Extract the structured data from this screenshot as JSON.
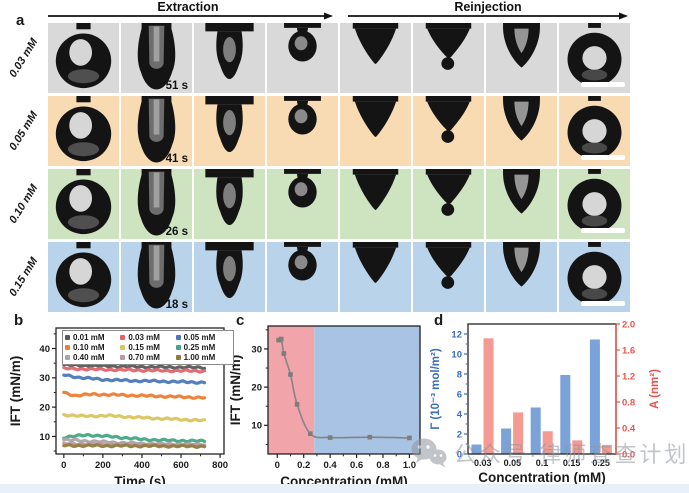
{
  "panel_a": {
    "label": "a",
    "extraction_label": "Extraction",
    "reinjection_label": "Reinjection",
    "rows": [
      {
        "concentration": "0.03 mM",
        "time_label": "51 s",
        "bg_color": "#d9d9d9"
      },
      {
        "concentration": "0.05 mM",
        "time_label": "41 s",
        "bg_color": "#f8dbb2"
      },
      {
        "concentration": "0.10 mM",
        "time_label": "26 s",
        "bg_color": "#cee4c0"
      },
      {
        "concentration": "0.15 mM",
        "time_label": "18 s",
        "bg_color": "#b9d3eb"
      }
    ],
    "droplet_sequence": [
      "ring-drop",
      "u-tube-drop",
      "mushroom-drop",
      "small-blob-drop",
      "cone-drop",
      "cone-drip-drop",
      "hollow-cone-drop",
      "ring-end-drop"
    ],
    "has_scale_bar": true
  },
  "chart_data": [
    {
      "panel_label": "b",
      "type": "line",
      "xlabel": "Time (s)",
      "ylabel": "IFT (mN/m)",
      "xlim": [
        -40,
        820
      ],
      "ylim": [
        4,
        47
      ],
      "xticks": [
        0,
        200,
        400,
        600,
        800
      ],
      "yticks": [
        10,
        20,
        30,
        40
      ],
      "grid": false,
      "legend_position": "top-inside",
      "series": [
        {
          "name": "0.01 mM",
          "color": "#595959",
          "points": [
            [
              0,
              34.4
            ],
            [
              150,
              34.1
            ],
            [
              300,
              33.9
            ],
            [
              450,
              33.7
            ],
            [
              600,
              33.6
            ],
            [
              720,
              33.5
            ]
          ]
        },
        {
          "name": "0.03 mM",
          "color": "#e2636b",
          "points": [
            [
              0,
              33.2
            ],
            [
              150,
              32.9
            ],
            [
              300,
              32.7
            ],
            [
              450,
              32.5
            ],
            [
              600,
              32.4
            ],
            [
              720,
              32.3
            ]
          ]
        },
        {
          "name": "0.05 mM",
          "color": "#4a78ba",
          "points": [
            [
              0,
              31.0
            ],
            [
              80,
              30.1
            ],
            [
              200,
              29.4
            ],
            [
              350,
              29.0
            ],
            [
              500,
              28.8
            ],
            [
              720,
              28.4
            ]
          ]
        },
        {
          "name": "0.10 mM",
          "color": "#ec7d33",
          "points": [
            [
              0,
              25.0
            ],
            [
              60,
              23.9
            ],
            [
              150,
              24.4
            ],
            [
              300,
              24.1
            ],
            [
              500,
              23.7
            ],
            [
              720,
              23.2
            ]
          ]
        },
        {
          "name": "0.15 mM",
          "color": "#d9c45e",
          "points": [
            [
              0,
              17.4
            ],
            [
              100,
              16.9
            ],
            [
              220,
              17.1
            ],
            [
              400,
              16.4
            ],
            [
              600,
              15.8
            ],
            [
              720,
              15.4
            ]
          ]
        },
        {
          "name": "0.25 mM",
          "color": "#43a585",
          "points": [
            [
              0,
              9.7
            ],
            [
              120,
              10.5
            ],
            [
              250,
              9.9
            ],
            [
              400,
              9.0
            ],
            [
              550,
              8.6
            ],
            [
              720,
              8.4
            ]
          ]
        },
        {
          "name": "0.40 mM",
          "color": "#a7a7a7",
          "points": [
            [
              0,
              8.9
            ],
            [
              120,
              8.4
            ],
            [
              300,
              7.8
            ],
            [
              500,
              7.4
            ],
            [
              720,
              7.2
            ]
          ]
        },
        {
          "name": "0.70 mM",
          "color": "#c493a6",
          "points": [
            [
              0,
              7.5
            ],
            [
              200,
              7.3
            ],
            [
              450,
              7.1
            ],
            [
              720,
              7.0
            ]
          ]
        },
        {
          "name": "1.00 mM",
          "color": "#8f7d3d",
          "points": [
            [
              0,
              6.9
            ],
            [
              250,
              6.8
            ],
            [
              500,
              6.7
            ],
            [
              720,
              6.6
            ]
          ]
        }
      ]
    },
    {
      "panel_label": "c",
      "type": "scatter",
      "xlabel": "Concentration (mM)",
      "ylabel": "IFT (mN/m)",
      "xlim": [
        -0.07,
        1.08
      ],
      "ylim": [
        2.5,
        36
      ],
      "xticks": [
        0,
        0.2,
        0.4,
        0.6,
        0.8,
        1.0
      ],
      "yticks": [
        10,
        20,
        30
      ],
      "line_color": "#858585",
      "marker_color": "#7d7d7d",
      "regions": [
        {
          "from": -0.07,
          "to": 0.28,
          "color": "#f2a4ab"
        },
        {
          "from": 0.28,
          "to": 1.08,
          "color": "#a8c3e3"
        }
      ],
      "points": [
        [
          0.01,
          32.3
        ],
        [
          0.03,
          32.6
        ],
        [
          0.05,
          28.8
        ],
        [
          0.1,
          23.3
        ],
        [
          0.15,
          15.5
        ],
        [
          0.25,
          7.8
        ],
        [
          0.4,
          6.8
        ],
        [
          0.7,
          6.9
        ],
        [
          1.0,
          6.7
        ]
      ]
    },
    {
      "panel_label": "d",
      "type": "bar",
      "xlabel": "Concentration (mM)",
      "ylabel_left": "Γ (10⁻³ mol/m²)",
      "ylabel_right": "A (nm²)",
      "categories": [
        "0.03",
        "0.05",
        "0.1",
        "0.15",
        "0.25"
      ],
      "left_axis": {
        "color": "#3a6db8",
        "ticks": [
          0,
          2,
          4,
          6,
          8,
          10,
          12
        ],
        "max": 13
      },
      "right_axis": {
        "color": "#e8554e",
        "ticks": [
          "0.0",
          "0.4",
          "0.8",
          "1.2",
          "1.6",
          "2.0"
        ],
        "max": 2.0
      },
      "series": [
        {
          "name": "Γ (10⁻³ mol/m²)",
          "axis": "left",
          "color": "#7ba3da",
          "values": [
            0.95,
            2.55,
            4.65,
            7.9,
            11.45
          ]
        },
        {
          "name": "A (nm²)",
          "axis": "right",
          "color": "#f59a93",
          "values": [
            1.78,
            0.64,
            0.35,
            0.21,
            0.14
          ]
        }
      ]
    }
  ],
  "watermark": {
    "icon": "wechat-icon",
    "text": "公众号·律师查查计划"
  }
}
